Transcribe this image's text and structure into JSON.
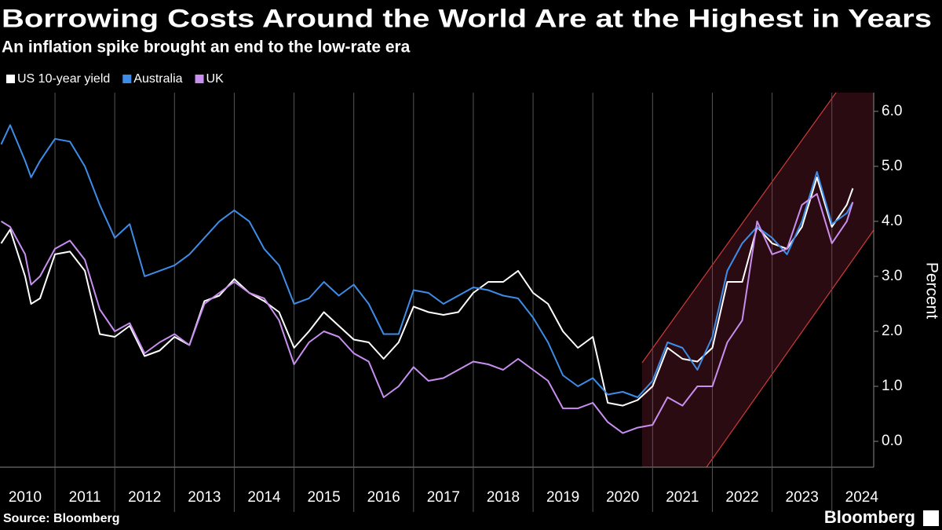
{
  "chart_data": {
    "type": "line",
    "title": "Borrowing Costs Around the World Are at the Highest in Years",
    "subtitle": "An inflation spike brought an end to the low-rate era",
    "y_label": "Percent",
    "source": "Source: Bloomberg",
    "logo": "Bloomberg",
    "x": [
      2010.1,
      2010.25,
      2010.5,
      2010.6,
      2010.75,
      2011.0,
      2011.25,
      2011.5,
      2011.75,
      2012.0,
      2012.25,
      2012.5,
      2012.75,
      2013.0,
      2013.25,
      2013.5,
      2013.75,
      2014.0,
      2014.25,
      2014.5,
      2014.75,
      2015.0,
      2015.25,
      2015.5,
      2015.75,
      2016.0,
      2016.25,
      2016.5,
      2016.75,
      2017.0,
      2017.25,
      2017.5,
      2017.75,
      2018.0,
      2018.25,
      2018.5,
      2018.75,
      2019.0,
      2019.25,
      2019.5,
      2019.75,
      2020.0,
      2020.25,
      2020.5,
      2020.75,
      2021.0,
      2021.25,
      2021.5,
      2021.75,
      2022.0,
      2022.25,
      2022.5,
      2022.75,
      2023.0,
      2023.25,
      2023.5,
      2023.75,
      2024.0,
      2024.25,
      2024.35
    ],
    "series": [
      {
        "name": "US 10-year yield",
        "color": "#ffffff",
        "values": [
          3.6,
          3.85,
          3.0,
          2.5,
          2.6,
          3.4,
          3.45,
          3.1,
          1.95,
          1.9,
          2.1,
          1.55,
          1.65,
          1.9,
          1.75,
          2.55,
          2.65,
          2.95,
          2.7,
          2.55,
          2.35,
          1.7,
          2.0,
          2.35,
          2.1,
          1.85,
          1.8,
          1.5,
          1.8,
          2.45,
          2.35,
          2.3,
          2.35,
          2.7,
          2.9,
          2.9,
          3.1,
          2.7,
          2.5,
          2.0,
          1.7,
          1.9,
          0.7,
          0.65,
          0.75,
          1.0,
          1.7,
          1.5,
          1.45,
          1.7,
          2.9,
          2.9,
          3.9,
          3.6,
          3.5,
          3.9,
          4.8,
          3.9,
          4.3,
          4.6
        ]
      },
      {
        "name": "Australia",
        "color": "#3d8de8",
        "values": [
          5.4,
          5.75,
          5.1,
          4.8,
          5.1,
          5.5,
          5.45,
          5.0,
          4.3,
          3.7,
          3.95,
          3.0,
          3.1,
          3.2,
          3.4,
          3.7,
          4.0,
          4.2,
          4.0,
          3.5,
          3.2,
          2.5,
          2.6,
          2.9,
          2.65,
          2.85,
          2.5,
          1.95,
          1.95,
          2.75,
          2.7,
          2.5,
          2.65,
          2.8,
          2.75,
          2.65,
          2.6,
          2.25,
          1.8,
          1.2,
          1.0,
          1.15,
          0.85,
          0.9,
          0.8,
          1.1,
          1.8,
          1.7,
          1.3,
          1.9,
          3.1,
          3.6,
          3.9,
          3.7,
          3.4,
          4.0,
          4.9,
          3.95,
          4.15,
          4.35
        ]
      },
      {
        "name": "UK",
        "color": "#c88ef0",
        "values": [
          4.0,
          3.9,
          3.4,
          2.85,
          3.0,
          3.5,
          3.65,
          3.3,
          2.4,
          2.0,
          2.15,
          1.6,
          1.8,
          1.95,
          1.75,
          2.5,
          2.7,
          2.9,
          2.7,
          2.6,
          2.2,
          1.4,
          1.8,
          2.0,
          1.9,
          1.6,
          1.45,
          0.8,
          1.0,
          1.35,
          1.1,
          1.15,
          1.3,
          1.45,
          1.4,
          1.3,
          1.5,
          1.3,
          1.1,
          0.6,
          0.6,
          0.7,
          0.35,
          0.15,
          0.25,
          0.3,
          0.8,
          0.65,
          1.0,
          1.0,
          1.8,
          2.2,
          4.0,
          3.4,
          3.5,
          4.3,
          4.5,
          3.6,
          4.0,
          4.35
        ]
      }
    ],
    "xlim": [
      2010.08,
      2024.7
    ],
    "xticks": [
      {
        "value": 2010.5,
        "label": "2010"
      },
      {
        "value": 2011.5,
        "label": "2011"
      },
      {
        "value": 2012.5,
        "label": "2012"
      },
      {
        "value": 2013.5,
        "label": "2013"
      },
      {
        "value": 2014.5,
        "label": "2014"
      },
      {
        "value": 2015.5,
        "label": "2015"
      },
      {
        "value": 2016.5,
        "label": "2016"
      },
      {
        "value": 2017.5,
        "label": "2017"
      },
      {
        "value": 2018.5,
        "label": "2018"
      },
      {
        "value": 2019.5,
        "label": "2019"
      },
      {
        "value": 2020.5,
        "label": "2020"
      },
      {
        "value": 2021.5,
        "label": "2021"
      },
      {
        "value": 2022.5,
        "label": "2022"
      },
      {
        "value": 2023.5,
        "label": "2023"
      },
      {
        "value": 2024.5,
        "label": "2024"
      }
    ],
    "ylim": [
      -0.47,
      6.34
    ],
    "yticks": [
      {
        "value": 0,
        "label": "0.0"
      },
      {
        "value": 1,
        "label": "1.0"
      },
      {
        "value": 2,
        "label": "2.0"
      },
      {
        "value": 3,
        "label": "3.0"
      },
      {
        "value": 4,
        "label": "4.0"
      },
      {
        "value": 5,
        "label": "5.0"
      },
      {
        "value": 6,
        "label": "6.0"
      }
    ],
    "legend": "top-left"
  }
}
